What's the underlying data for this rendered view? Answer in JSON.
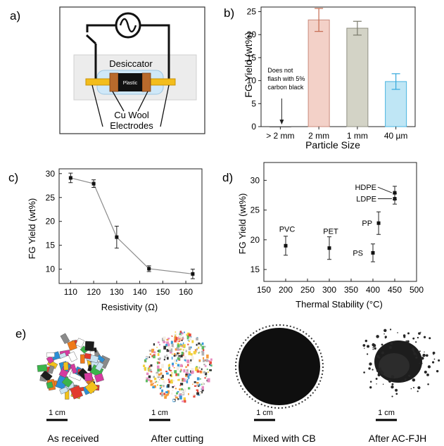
{
  "panel_labels": {
    "a": "a)",
    "b": "b)",
    "c": "c)",
    "d": "d)",
    "e": "e)"
  },
  "schematic": {
    "desiccator_label": "Desiccator",
    "sample_label": "Plastic",
    "cu_wool_label": "Cu Wool",
    "electrodes_label": "Electrodes"
  },
  "chart_data": [
    {
      "id": "b",
      "type": "bar",
      "categories": [
        "> 2 mm",
        "2 mm",
        "1 mm",
        "40 µm"
      ],
      "values": [
        0,
        23.2,
        21.4,
        9.8
      ],
      "errors": [
        0,
        2.5,
        1.5,
        1.7
      ],
      "colors": [
        "#e3e0e4",
        "#f3d1c8",
        "#d3d3c6",
        "#bfe6f5"
      ],
      "edge_colors": [
        "#555555",
        "#c98a7c",
        "#8f8f82",
        "#49b4e0"
      ],
      "error_colors": [
        "#555555",
        "#c46a4f",
        "#7a7a6c",
        "#35a8dc"
      ],
      "title": "",
      "xlabel": "Particle Size",
      "ylabel": "FG Yield (wt%)",
      "ylim": [
        0,
        26
      ],
      "yticks": [
        0,
        5,
        10,
        15,
        20,
        25
      ],
      "annotation": {
        "lines": [
          "Does not",
          "flash with 5%",
          "carbon black"
        ],
        "category": "> 2 mm"
      }
    },
    {
      "id": "c",
      "type": "line",
      "x": [
        110,
        120,
        130,
        144,
        163
      ],
      "y": [
        29.1,
        27.9,
        16.7,
        10.1,
        9.0
      ],
      "yerr": [
        1.0,
        0.8,
        2.3,
        0.6,
        1.0
      ],
      "xlabel": "Resistivity (Ω)",
      "ylabel": "FG Yield (wt%)",
      "xlim": [
        105,
        167
      ],
      "ylim": [
        7,
        31
      ],
      "xticks": [
        110,
        120,
        130,
        140,
        150,
        160
      ],
      "yticks": [
        10,
        15,
        20,
        25,
        30
      ],
      "line_color": "#8c8c8c",
      "marker_color": "#111111"
    },
    {
      "id": "d",
      "type": "scatter",
      "points": [
        {
          "label": "PVC",
          "x": 200,
          "y": 19.0,
          "err": 1.6
        },
        {
          "label": "PET",
          "x": 300,
          "y": 18.6,
          "err": 1.9
        },
        {
          "label": "PS",
          "x": 400,
          "y": 17.8,
          "err": 1.5
        },
        {
          "label": "PP",
          "x": 413,
          "y": 22.8,
          "err": 1.9
        },
        {
          "label": "LDPE",
          "x": 450,
          "y": 26.9,
          "err": 0.9
        },
        {
          "label": "HDPE",
          "x": 450,
          "y": 27.9,
          "err": 1.1
        }
      ],
      "xlabel": "Thermal Stability (°C)",
      "ylabel": "FG Yield (wt%)",
      "xlim": [
        150,
        500
      ],
      "ylim": [
        13,
        33
      ],
      "xticks": [
        150,
        200,
        250,
        300,
        350,
        400,
        450,
        500
      ],
      "yticks": [
        15,
        20,
        25,
        30
      ],
      "marker_color": "#111111"
    }
  ],
  "photos": [
    {
      "caption": "As received",
      "scale": "1 cm"
    },
    {
      "caption": "After cutting",
      "scale": "1 cm"
    },
    {
      "caption": "Mixed with CB",
      "scale": "1 cm"
    },
    {
      "caption": "After AC-FJH",
      "scale": "1 cm"
    }
  ]
}
